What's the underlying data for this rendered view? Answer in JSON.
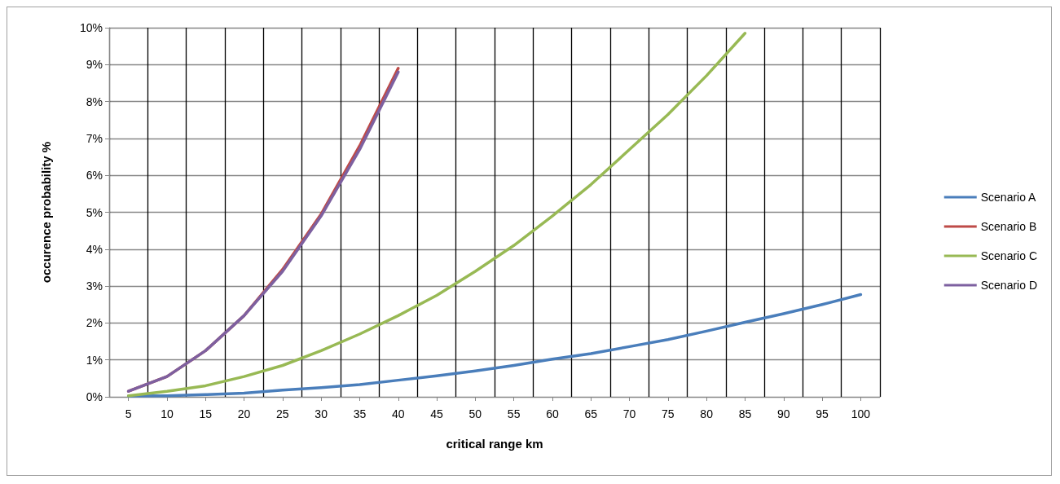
{
  "chart_data": {
    "type": "line",
    "xlabel": "critical range km",
    "ylabel": "occurence probability %",
    "categories": [
      "5",
      "10",
      "15",
      "20",
      "25",
      "30",
      "35",
      "40",
      "45",
      "50",
      "55",
      "60",
      "65",
      "70",
      "75",
      "80",
      "85",
      "90",
      "95",
      "100"
    ],
    "series": [
      {
        "name": "Scenario A",
        "color": "#4a7ebb",
        "values": [
          0.02,
          0.03,
          0.06,
          0.1,
          0.18,
          0.25,
          0.33,
          0.45,
          0.57,
          0.7,
          0.85,
          1.02,
          1.17,
          1.36,
          1.55,
          1.78,
          2.02,
          2.25,
          2.5,
          2.77
        ]
      },
      {
        "name": "Scenario B",
        "color": "#be4b48",
        "values": [
          0.15,
          0.55,
          1.25,
          2.2,
          3.45,
          4.95,
          6.8,
          8.9,
          null,
          null,
          null,
          null,
          null,
          null,
          null,
          null,
          null,
          null,
          null,
          null
        ]
      },
      {
        "name": "Scenario C",
        "color": "#98b954",
        "values": [
          0.03,
          0.15,
          0.3,
          0.55,
          0.85,
          1.25,
          1.7,
          2.2,
          2.75,
          3.4,
          4.1,
          4.9,
          5.75,
          6.7,
          7.65,
          8.7,
          9.85,
          null,
          null,
          null
        ]
      },
      {
        "name": "Scenario D",
        "color": "#7d60a0",
        "values": [
          0.15,
          0.55,
          1.25,
          2.2,
          3.4,
          4.9,
          6.7,
          8.8,
          null,
          null,
          null,
          null,
          null,
          null,
          null,
          null,
          null,
          null,
          null,
          null
        ]
      }
    ],
    "ylim": [
      0,
      10
    ],
    "yticks": [
      {
        "value": 0,
        "label": "0%"
      },
      {
        "value": 1,
        "label": "1%"
      },
      {
        "value": 2,
        "label": "2%"
      },
      {
        "value": 3,
        "label": "3%"
      },
      {
        "value": 4,
        "label": "4%"
      },
      {
        "value": 5,
        "label": "5%"
      },
      {
        "value": 6,
        "label": "6%"
      },
      {
        "value": 7,
        "label": "7%"
      },
      {
        "value": 8,
        "label": "8%"
      },
      {
        "value": 9,
        "label": "9%"
      },
      {
        "value": 10,
        "label": "10%"
      }
    ],
    "grid": true,
    "legend": "right",
    "marker": "none",
    "line_style": "solid"
  }
}
